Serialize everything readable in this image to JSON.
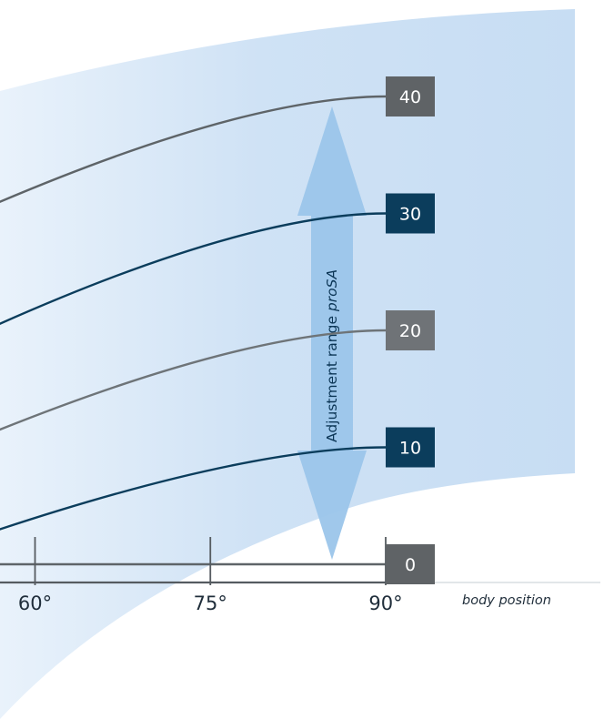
{
  "chart_data": {
    "type": "line",
    "x": [
      60,
      75,
      90
    ],
    "x_tick_labels": [
      "60°",
      "75°",
      "90°"
    ],
    "xlabel": "body position",
    "xlim": [
      50,
      90
    ],
    "ylim": [
      0,
      40
    ],
    "series": [
      {
        "label": "40",
        "color": "#5e6468",
        "box_color": "#5f6366",
        "values": [
          31.7,
          37.5,
          40
        ]
      },
      {
        "label": "30",
        "color": "#0b3d5c",
        "box_color": "#0b3d5c",
        "values": [
          21.5,
          27.8,
          30
        ]
      },
      {
        "label": "20",
        "color": "#6e7478",
        "box_color": "#6f7377",
        "values": [
          12.3,
          17.9,
          20
        ]
      },
      {
        "label": "10",
        "color": "#0b3d5c",
        "box_color": "#0b3d5c",
        "values": [
          3.7,
          8.4,
          10
        ]
      },
      {
        "label": "0",
        "color": "#5e6468",
        "box_color": "#5f6366",
        "values": [
          0,
          0,
          0
        ]
      }
    ],
    "adjustment_range": {
      "text": "Adjustment range ",
      "emphasis": "proSA",
      "from": 0,
      "to": 40
    }
  },
  "colors": {
    "band": "#cfe2f5",
    "arrow": "#9bc5ea",
    "axis": "#555b60"
  }
}
